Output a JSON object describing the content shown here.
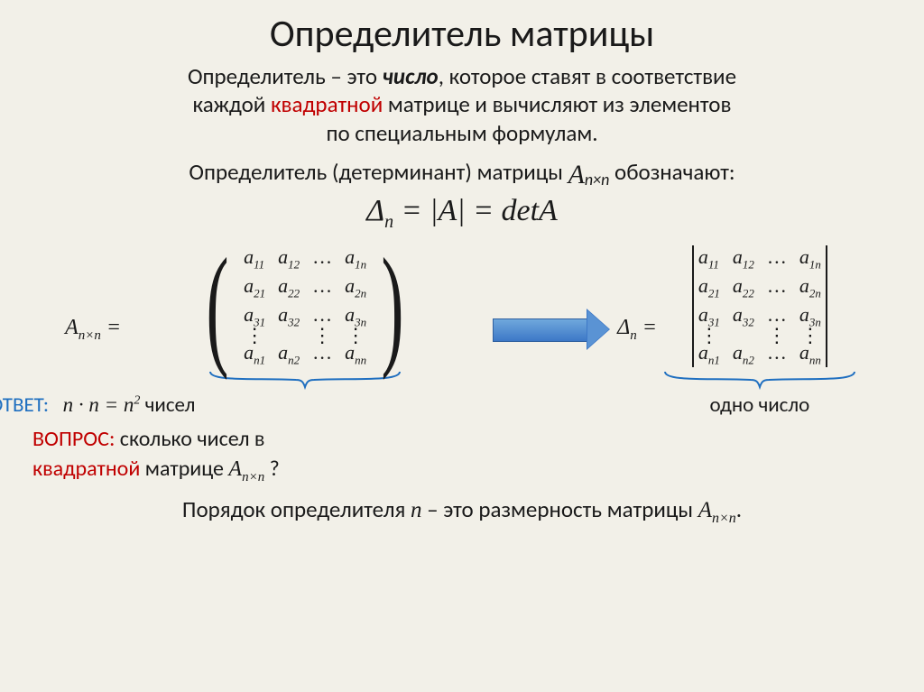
{
  "colors": {
    "background": "#f2f0e8",
    "text": "#1a1a1a",
    "accent_red": "#c00000",
    "accent_blue": "#1f6fc0",
    "arrow_fill_top": "#6fa8dc",
    "arrow_fill_bottom": "#3d78c7",
    "arrow_border": "#2f5f9e"
  },
  "title": "Определитель матрицы",
  "intro": {
    "line1_a": "Определитель – это ",
    "line1_num": "число",
    "line1_b": ", которое ставят в соответствие",
    "line2_a": "каждой  ",
    "line2_sq": "квадратной",
    "line2_b": "  матрице и вычисляют из элементов",
    "line3": "по специальным формулам."
  },
  "notation": {
    "text_a": "Определитель (детерминант) матрицы  ",
    "A": "A",
    "Asub": "n×n",
    "text_b": "  обозначают:"
  },
  "equation": {
    "delta": "Δ",
    "delta_sub": "n",
    "eq1": " = |",
    "A": "A",
    "eq2": "| = ",
    "det": "detA"
  },
  "matrix": {
    "lhs_left": "A",
    "lhs_left_sub": "n×n",
    "lhs_eq": " =",
    "rhs_left": "Δ",
    "rhs_left_sub": "n",
    "rhs_eq": " =",
    "rows": [
      [
        "a",
        "11",
        "a",
        "12",
        "…",
        "a",
        "1n"
      ],
      [
        "a",
        "21",
        "a",
        "22",
        "…",
        "a",
        "2n"
      ],
      [
        "a",
        "31",
        "a",
        "32",
        "…",
        "a",
        "3n"
      ],
      [
        "⋮",
        "",
        "",
        "⋮",
        "",
        "⋮",
        ""
      ],
      [
        "a",
        "n1",
        "a",
        "n2",
        "…",
        "a",
        "nn"
      ]
    ],
    "under_left_a": "n · n = n",
    "under_left_sup": "2",
    "under_left_b": " чисел",
    "under_right": "одно число"
  },
  "bottom": {
    "answer_label": "ОТВЕТ:",
    "question_label": "ВОПРОС:",
    "question_a": " сколько чисел в",
    "question_b_sq": "квадратной",
    "question_b2": " матрице  ",
    "question_A": "A",
    "question_Asub": "n×n",
    "question_qm": " ?"
  },
  "order": {
    "a": "Порядок определителя ",
    "n": "n",
    "b": " – это размерность матрицы ",
    "A": "A",
    "Asub": "n×n",
    "dot": "."
  }
}
